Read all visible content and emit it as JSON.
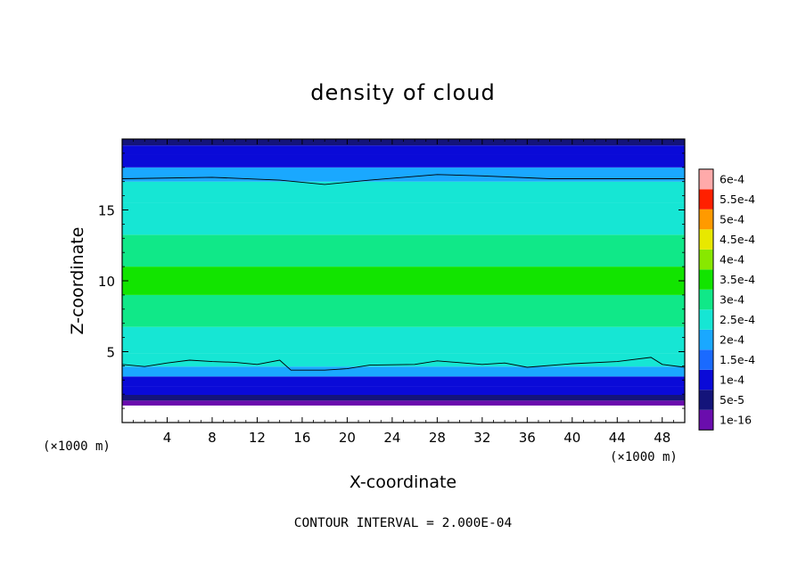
{
  "chart_data": {
    "type": "heatmap",
    "title": "density of cloud",
    "xlabel": "X-coordinate",
    "ylabel": "Z-coordinate",
    "x_unit": "(×1000 m)",
    "y_unit": "(×1000 m)",
    "xlim": [
      0,
      50
    ],
    "ylim": [
      0,
      20
    ],
    "x_ticks": [
      4,
      8,
      12,
      16,
      20,
      24,
      28,
      32,
      36,
      40,
      44,
      48
    ],
    "y_ticks": [
      5,
      10,
      15
    ],
    "grid": false,
    "colorbar": {
      "placement": "right",
      "labels": [
        "1e-16",
        "5e-5",
        "1e-4",
        "1.5e-4",
        "2e-4",
        "2.5e-4",
        "3e-4",
        "3.5e-4",
        "4e-4",
        "4.5e-4",
        "5e-4",
        "5.5e-4",
        "6e-4"
      ],
      "colors": [
        "#6a0dad",
        "#14147a",
        "#0a0ad8",
        "#1a6aff",
        "#1aa8ff",
        "#16e6d4",
        "#10e888",
        "#12e400",
        "#88e800",
        "#e8e800",
        "#ff9a00",
        "#ff2000",
        "#ffaaaa"
      ]
    },
    "contour_lines": [
      {
        "level": 0.0002,
        "points": [
          [
            0,
            17.2
          ],
          [
            8,
            17.3
          ],
          [
            14,
            17.1
          ],
          [
            18,
            16.8
          ],
          [
            22,
            17.1
          ],
          [
            28,
            17.5
          ],
          [
            32,
            17.4
          ],
          [
            38,
            17.2
          ],
          [
            44,
            17.2
          ],
          [
            50,
            17.2
          ]
        ]
      },
      {
        "level": 0.0002,
        "points": [
          [
            0,
            4.1
          ],
          [
            2,
            3.95
          ],
          [
            4,
            4.2
          ],
          [
            6,
            4.4
          ],
          [
            8,
            4.3
          ],
          [
            10,
            4.25
          ],
          [
            12,
            4.1
          ],
          [
            14,
            4.4
          ],
          [
            15,
            3.7
          ],
          [
            18,
            3.7
          ],
          [
            20,
            3.8
          ],
          [
            22,
            4.05
          ],
          [
            26,
            4.1
          ],
          [
            28,
            4.35
          ],
          [
            32,
            4.1
          ],
          [
            34,
            4.2
          ],
          [
            36,
            3.9
          ],
          [
            40,
            4.15
          ],
          [
            44,
            4.3
          ],
          [
            47,
            4.6
          ],
          [
            48,
            4.1
          ],
          [
            50,
            3.9
          ]
        ]
      }
    ],
    "vertical_profile": [
      {
        "z": 1.4,
        "v": 2e-05
      },
      {
        "z": 1.7,
        "v": 5e-05
      },
      {
        "z": 2.2,
        "v": 0.0001
      },
      {
        "z": 2.9,
        "v": 0.00015
      },
      {
        "z": 3.6,
        "v": 0.0002
      },
      {
        "z": 4.3,
        "v": 0.00025
      },
      {
        "z": 5.5,
        "v": 0.0003
      },
      {
        "z": 8.0,
        "v": 0.00034
      },
      {
        "z": 10.0,
        "v": 0.00036
      },
      {
        "z": 12.0,
        "v": 0.00034
      },
      {
        "z": 14.5,
        "v": 0.0003
      },
      {
        "z": 16.5,
        "v": 0.00025
      },
      {
        "z": 17.5,
        "v": 0.0002
      },
      {
        "z": 18.5,
        "v": 0.00015
      },
      {
        "z": 19.3,
        "v": 0.0001
      },
      {
        "z": 19.8,
        "v": 5e-05
      }
    ],
    "no_data_below_z": 1.2
  },
  "footer": "CONTOUR INTERVAL = 2.000E-04",
  "colors": {
    "axis": "#000000",
    "background": "#ffffff"
  }
}
